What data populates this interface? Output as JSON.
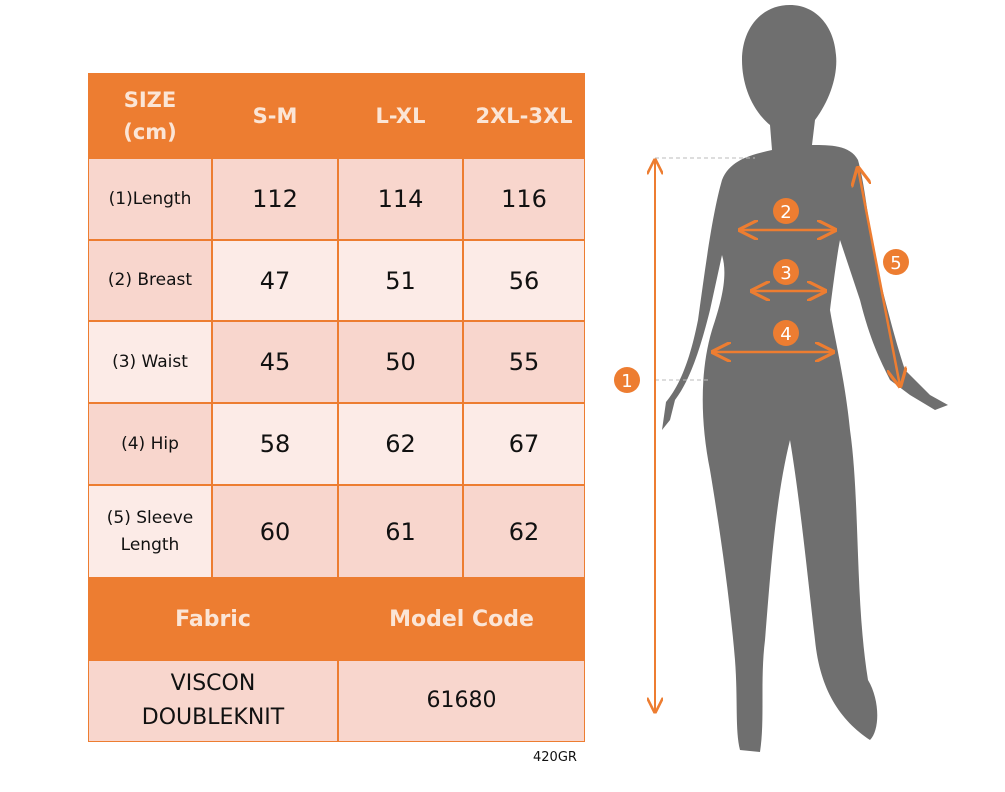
{
  "table": {
    "header": [
      "SIZE\n(cm)",
      "S-M",
      "L-XL",
      "2XL-3XL"
    ],
    "header_lines": [
      "SIZE",
      "(cm)"
    ],
    "rows": [
      {
        "label": "(1)Length",
        "values": [
          "112",
          "114",
          "116"
        ]
      },
      {
        "label": "(2) Breast",
        "values": [
          "47",
          "51",
          "56"
        ]
      },
      {
        "label": "(3) Waist",
        "values": [
          "45",
          "50",
          "55"
        ]
      },
      {
        "label": "(4) Hip",
        "values": [
          "58",
          "62",
          "67"
        ]
      },
      {
        "label_lines": [
          "(5) Sleeve",
          "Length"
        ],
        "values": [
          "60",
          "61",
          "62"
        ]
      }
    ],
    "fabric_label": "Fabric",
    "model_code_label": "Model Code",
    "fabric_lines": [
      "VISCON",
      "DOUBLEKNIT"
    ],
    "model_code": "61680"
  },
  "note": "420GR",
  "figure": {
    "markers": [
      "1",
      "2",
      "3",
      "4",
      "5"
    ]
  },
  "colors": {
    "accent": "#ed7d31",
    "cell_dark": "#f8d6cd",
    "cell_light": "#fcebe7",
    "silhouette": "#6f6f6f"
  }
}
